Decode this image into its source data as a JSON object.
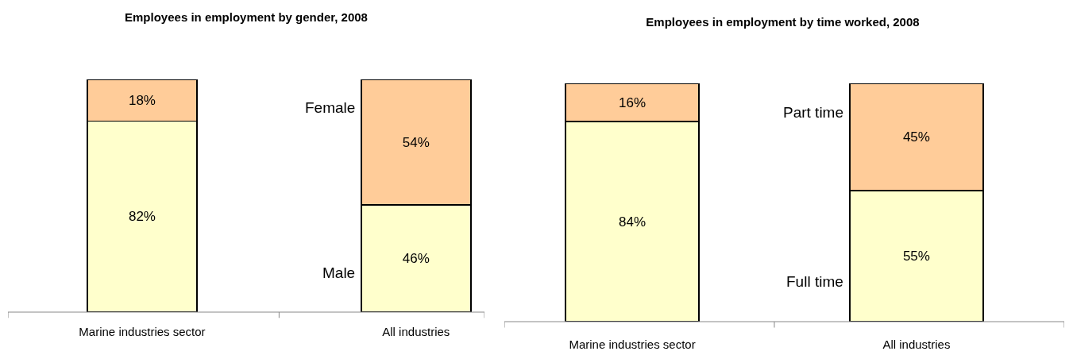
{
  "chart_data": [
    {
      "type": "bar",
      "title": "Employees in employment by gender, 2008",
      "categories": [
        "Marine industries sector",
        "All industries"
      ],
      "stacked": true,
      "legend": false,
      "series": [
        {
          "name": "Male",
          "color": "#ffffcc",
          "values": [
            82,
            46
          ],
          "value_labels": [
            "82%",
            "46%"
          ]
        },
        {
          "name": "Female",
          "color": "#ffcc99",
          "values": [
            18,
            54
          ],
          "value_labels": [
            "18%",
            "54%"
          ]
        }
      ]
    },
    {
      "type": "bar",
      "title": "Employees in employment by time worked, 2008",
      "categories": [
        "Marine industries sector",
        "All industries"
      ],
      "stacked": true,
      "legend": false,
      "series": [
        {
          "name": "Full time",
          "color": "#ffffcc",
          "values": [
            84,
            55
          ],
          "value_labels": [
            "84%",
            "55%"
          ]
        },
        {
          "name": "Part time",
          "color": "#ffcc99",
          "values": [
            16,
            45
          ],
          "value_labels": [
            "16%",
            "45%"
          ]
        }
      ]
    }
  ]
}
